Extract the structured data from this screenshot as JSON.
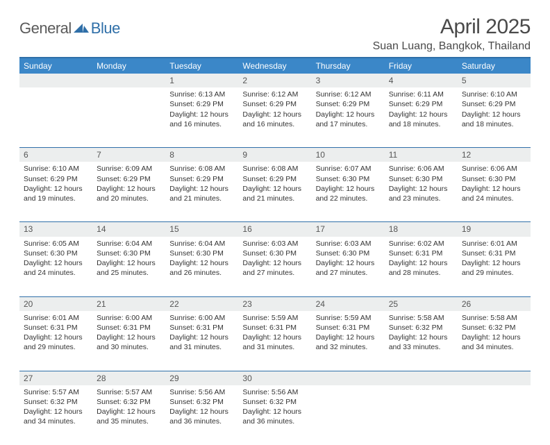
{
  "logo": {
    "general": "General",
    "blue": "Blue"
  },
  "title": "April 2025",
  "location": "Suan Luang, Bangkok, Thailand",
  "colors": {
    "header_bg": "#3b87c8",
    "header_border": "#2f6fa8",
    "daynum_bg": "#eceeee",
    "text": "#333333",
    "title_text": "#4a4a4a"
  },
  "weekdays": [
    "Sunday",
    "Monday",
    "Tuesday",
    "Wednesday",
    "Thursday",
    "Friday",
    "Saturday"
  ],
  "weeks": [
    [
      null,
      null,
      {
        "n": "1",
        "sunrise": "Sunrise: 6:13 AM",
        "sunset": "Sunset: 6:29 PM",
        "daylight": "Daylight: 12 hours and 16 minutes."
      },
      {
        "n": "2",
        "sunrise": "Sunrise: 6:12 AM",
        "sunset": "Sunset: 6:29 PM",
        "daylight": "Daylight: 12 hours and 16 minutes."
      },
      {
        "n": "3",
        "sunrise": "Sunrise: 6:12 AM",
        "sunset": "Sunset: 6:29 PM",
        "daylight": "Daylight: 12 hours and 17 minutes."
      },
      {
        "n": "4",
        "sunrise": "Sunrise: 6:11 AM",
        "sunset": "Sunset: 6:29 PM",
        "daylight": "Daylight: 12 hours and 18 minutes."
      },
      {
        "n": "5",
        "sunrise": "Sunrise: 6:10 AM",
        "sunset": "Sunset: 6:29 PM",
        "daylight": "Daylight: 12 hours and 18 minutes."
      }
    ],
    [
      {
        "n": "6",
        "sunrise": "Sunrise: 6:10 AM",
        "sunset": "Sunset: 6:29 PM",
        "daylight": "Daylight: 12 hours and 19 minutes."
      },
      {
        "n": "7",
        "sunrise": "Sunrise: 6:09 AM",
        "sunset": "Sunset: 6:29 PM",
        "daylight": "Daylight: 12 hours and 20 minutes."
      },
      {
        "n": "8",
        "sunrise": "Sunrise: 6:08 AM",
        "sunset": "Sunset: 6:29 PM",
        "daylight": "Daylight: 12 hours and 21 minutes."
      },
      {
        "n": "9",
        "sunrise": "Sunrise: 6:08 AM",
        "sunset": "Sunset: 6:29 PM",
        "daylight": "Daylight: 12 hours and 21 minutes."
      },
      {
        "n": "10",
        "sunrise": "Sunrise: 6:07 AM",
        "sunset": "Sunset: 6:30 PM",
        "daylight": "Daylight: 12 hours and 22 minutes."
      },
      {
        "n": "11",
        "sunrise": "Sunrise: 6:06 AM",
        "sunset": "Sunset: 6:30 PM",
        "daylight": "Daylight: 12 hours and 23 minutes."
      },
      {
        "n": "12",
        "sunrise": "Sunrise: 6:06 AM",
        "sunset": "Sunset: 6:30 PM",
        "daylight": "Daylight: 12 hours and 24 minutes."
      }
    ],
    [
      {
        "n": "13",
        "sunrise": "Sunrise: 6:05 AM",
        "sunset": "Sunset: 6:30 PM",
        "daylight": "Daylight: 12 hours and 24 minutes."
      },
      {
        "n": "14",
        "sunrise": "Sunrise: 6:04 AM",
        "sunset": "Sunset: 6:30 PM",
        "daylight": "Daylight: 12 hours and 25 minutes."
      },
      {
        "n": "15",
        "sunrise": "Sunrise: 6:04 AM",
        "sunset": "Sunset: 6:30 PM",
        "daylight": "Daylight: 12 hours and 26 minutes."
      },
      {
        "n": "16",
        "sunrise": "Sunrise: 6:03 AM",
        "sunset": "Sunset: 6:30 PM",
        "daylight": "Daylight: 12 hours and 27 minutes."
      },
      {
        "n": "17",
        "sunrise": "Sunrise: 6:03 AM",
        "sunset": "Sunset: 6:30 PM",
        "daylight": "Daylight: 12 hours and 27 minutes."
      },
      {
        "n": "18",
        "sunrise": "Sunrise: 6:02 AM",
        "sunset": "Sunset: 6:31 PM",
        "daylight": "Daylight: 12 hours and 28 minutes."
      },
      {
        "n": "19",
        "sunrise": "Sunrise: 6:01 AM",
        "sunset": "Sunset: 6:31 PM",
        "daylight": "Daylight: 12 hours and 29 minutes."
      }
    ],
    [
      {
        "n": "20",
        "sunrise": "Sunrise: 6:01 AM",
        "sunset": "Sunset: 6:31 PM",
        "daylight": "Daylight: 12 hours and 29 minutes."
      },
      {
        "n": "21",
        "sunrise": "Sunrise: 6:00 AM",
        "sunset": "Sunset: 6:31 PM",
        "daylight": "Daylight: 12 hours and 30 minutes."
      },
      {
        "n": "22",
        "sunrise": "Sunrise: 6:00 AM",
        "sunset": "Sunset: 6:31 PM",
        "daylight": "Daylight: 12 hours and 31 minutes."
      },
      {
        "n": "23",
        "sunrise": "Sunrise: 5:59 AM",
        "sunset": "Sunset: 6:31 PM",
        "daylight": "Daylight: 12 hours and 31 minutes."
      },
      {
        "n": "24",
        "sunrise": "Sunrise: 5:59 AM",
        "sunset": "Sunset: 6:31 PM",
        "daylight": "Daylight: 12 hours and 32 minutes."
      },
      {
        "n": "25",
        "sunrise": "Sunrise: 5:58 AM",
        "sunset": "Sunset: 6:32 PM",
        "daylight": "Daylight: 12 hours and 33 minutes."
      },
      {
        "n": "26",
        "sunrise": "Sunrise: 5:58 AM",
        "sunset": "Sunset: 6:32 PM",
        "daylight": "Daylight: 12 hours and 34 minutes."
      }
    ],
    [
      {
        "n": "27",
        "sunrise": "Sunrise: 5:57 AM",
        "sunset": "Sunset: 6:32 PM",
        "daylight": "Daylight: 12 hours and 34 minutes."
      },
      {
        "n": "28",
        "sunrise": "Sunrise: 5:57 AM",
        "sunset": "Sunset: 6:32 PM",
        "daylight": "Daylight: 12 hours and 35 minutes."
      },
      {
        "n": "29",
        "sunrise": "Sunrise: 5:56 AM",
        "sunset": "Sunset: 6:32 PM",
        "daylight": "Daylight: 12 hours and 36 minutes."
      },
      {
        "n": "30",
        "sunrise": "Sunrise: 5:56 AM",
        "sunset": "Sunset: 6:32 PM",
        "daylight": "Daylight: 12 hours and 36 minutes."
      },
      null,
      null,
      null
    ]
  ]
}
